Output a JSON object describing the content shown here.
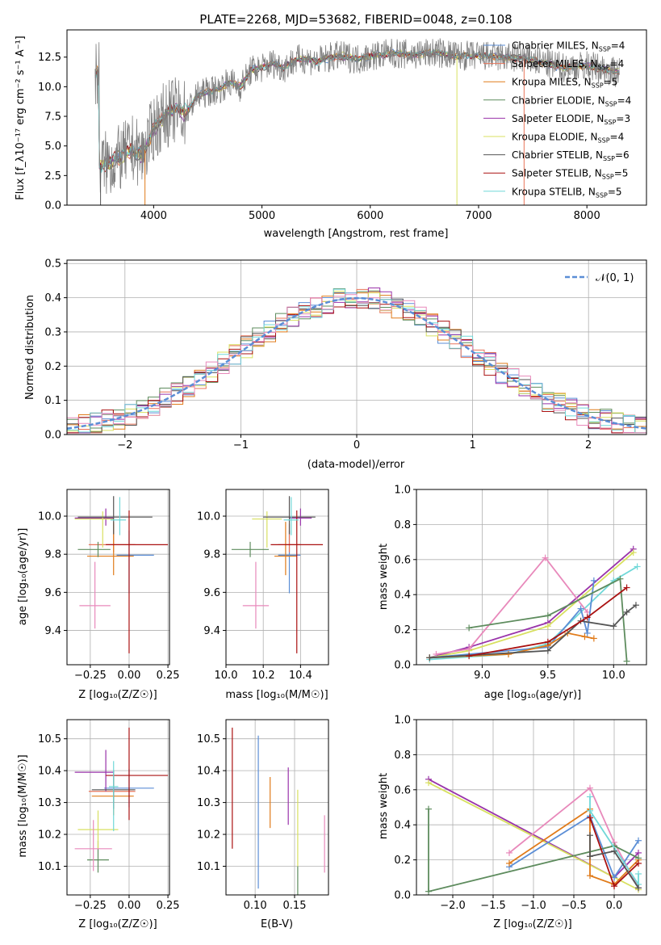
{
  "colors": {
    "chabrier_miles": "#5b8ed6",
    "salpeter_miles": "#e8745a",
    "kroupa_miles": "#e07b1a",
    "chabrier_elodie": "#5e8c5e",
    "salpeter_elodie": "#9933aa",
    "kroupa_elodie": "#d8e060",
    "chabrier_stelib": "#555555",
    "salpeter_stelib": "#aa1111",
    "kroupa_stelib": "#70d8d8",
    "pink": "#e889bb",
    "grey_data": "#808080",
    "normal_dash": "#5b8ed6"
  },
  "chart_data": [
    {
      "type": "line",
      "id": "spectrum",
      "title": "PLATE=2268, MJD=53682, FIBERID=0048, z=0.108",
      "xlabel": "wavelength [Angstrom, rest frame]",
      "ylabel": "Flux [f_λ10⁻¹⁷ erg cm⁻² s⁻¹ A⁻¹]",
      "xlim": [
        3200,
        8550
      ],
      "ylim": [
        0,
        14.8
      ],
      "xticks": [
        "4000",
        "5000",
        "6000",
        "7000",
        "8000"
      ],
      "yticks": [
        "0.0",
        "2.5",
        "5.0",
        "7.5",
        "10.0",
        "12.5"
      ],
      "legend_position": "right",
      "legend": [
        "Chabrier MILES, NSSP=4",
        "Salpeter MILES, NSSP=4",
        "Kroupa MILES, NSSP=5",
        "Chabrier ELODIE, NSSP=4",
        "Salpeter ELODIE, NSSP=3",
        "Kroupa ELODIE, NSSP=4",
        "Chabrier STELIB, NSSP=6",
        "Salpeter STELIB, NSSP=5",
        "Kroupa STELIB, NSSP=5"
      ],
      "data_envelope": {
        "x": [
          3500,
          3600,
          3700,
          3800,
          3900,
          4000,
          4100,
          4200,
          4300,
          4400,
          4500,
          4600,
          4700,
          4800,
          4900,
          5000,
          5100,
          5200,
          5300,
          5400,
          5500,
          5600,
          5700,
          5800,
          5900,
          6000,
          6200,
          6400,
          6600,
          6800,
          7000,
          7200,
          7400,
          7600,
          7800,
          8000,
          8200,
          8300
        ],
        "y": [
          3.4,
          3.6,
          4.0,
          4.8,
          4.2,
          6.5,
          7.6,
          8.0,
          7.8,
          9.2,
          9.6,
          9.8,
          10.4,
          10.0,
          11.4,
          11.6,
          12.0,
          11.6,
          12.2,
          12.4,
          12.1,
          12.4,
          12.6,
          12.5,
          12.3,
          12.6,
          12.8,
          12.7,
          12.9,
          12.6,
          12.6,
          12.5,
          12.4,
          12.0,
          11.6,
          11.8,
          11.4,
          11.2
        ]
      },
      "drops_to_zero": [
        3510,
        3920,
        6800,
        7420
      ]
    },
    {
      "type": "histogram",
      "id": "residuals",
      "xlabel": "(data-model)/error",
      "ylabel": "Normed distribution",
      "xlim": [
        -2.5,
        2.5
      ],
      "ylim": [
        0,
        0.51
      ],
      "xticks": [
        "−2",
        "−1",
        "0",
        "1",
        "2"
      ],
      "yticks": [
        "0.0",
        "0.1",
        "0.2",
        "0.3",
        "0.4",
        "0.5"
      ],
      "legend": [
        "𝒩(0, 1)"
      ],
      "legend_position": "upper right",
      "bin_width": 0.1
    },
    {
      "type": "errorbar",
      "id": "age_vs_Z",
      "xlabel": "Z [log₁₀(Z/Z☉)]",
      "ylabel": "age  [log₁₀(age/yr)]",
      "xlim": [
        -0.4,
        0.26
      ],
      "ylim": [
        9.22,
        10.14
      ],
      "xticks": [
        "−0.25",
        "0.00",
        "0.25"
      ],
      "yticks": [
        "9.4",
        "9.6",
        "9.8",
        "10.0"
      ],
      "points": [
        {
          "color": "chabrier_miles",
          "x": 0.0,
          "xerr": [
            0.08,
            0.16
          ],
          "y": 9.795,
          "yerr": [
            0.2,
            0.13
          ]
        },
        {
          "color": "salpeter_miles",
          "x": -0.1,
          "xerr": [
            0.16,
            0.14
          ],
          "y": 9.85,
          "yerr": [
            0.04,
            0.11
          ]
        },
        {
          "color": "kroupa_miles",
          "x": -0.1,
          "xerr": [
            0.17,
            0.13
          ],
          "y": 9.79,
          "yerr": [
            0.1,
            0.18
          ]
        },
        {
          "color": "chabrier_elodie",
          "x": -0.2,
          "xerr": [
            0.13,
            0.08
          ],
          "y": 9.825,
          "yerr": [
            0.04,
            0.04
          ]
        },
        {
          "color": "salpeter_elodie",
          "x": -0.15,
          "xerr": [
            0.2,
            0.05
          ],
          "y": 9.99,
          "yerr": [
            0.04,
            0.05
          ]
        },
        {
          "color": "kroupa_elodie",
          "x": -0.17,
          "xerr": [
            0.18,
            0.07
          ],
          "y": 9.985,
          "yerr": [
            0.15,
            0.04
          ]
        },
        {
          "color": "chabrier_stelib",
          "x": -0.1,
          "xerr": [
            0.23,
            0.25
          ],
          "y": 9.995,
          "yerr": [
            0.09,
            0.11
          ]
        },
        {
          "color": "salpeter_stelib",
          "x": 0.0,
          "xerr": [
            0.15,
            0.25
          ],
          "y": 9.85,
          "yerr": [
            0.57,
            0.18
          ]
        },
        {
          "color": "kroupa_stelib",
          "x": -0.06,
          "xerr": [
            0.06,
            0.04
          ],
          "y": 9.98,
          "yerr": [
            0.08,
            0.12
          ]
        },
        {
          "color": "pink",
          "x": -0.22,
          "xerr": [
            0.1,
            0.1
          ],
          "y": 9.53,
          "yerr": [
            0.12,
            0.23
          ]
        }
      ]
    },
    {
      "type": "errorbar",
      "id": "age_vs_mass",
      "xlabel": "mass [log₁₀(M/M☉)]",
      "ylabel": "",
      "xlim": [
        10.0,
        10.55
      ],
      "ylim": [
        9.22,
        10.14
      ],
      "xticks": [
        "10.0",
        "10.2",
        "10.4"
      ],
      "yticks": [
        "9.4",
        "9.6",
        "9.8",
        "10.0"
      ],
      "points": [
        {
          "color": "chabrier_miles",
          "x": 10.34,
          "xerr": [
            0.06,
            0.06
          ],
          "y": 9.795,
          "yerr": [
            0.2,
            0.13
          ]
        },
        {
          "color": "salpeter_miles",
          "x": 10.34,
          "xerr": [
            0.06,
            0.06
          ],
          "y": 9.85,
          "yerr": [
            0.04,
            0.11
          ]
        },
        {
          "color": "kroupa_miles",
          "x": 10.32,
          "xerr": [
            0.06,
            0.06
          ],
          "y": 9.79,
          "yerr": [
            0.1,
            0.18
          ]
        },
        {
          "color": "chabrier_elodie",
          "x": 10.13,
          "xerr": [
            0.1,
            0.1
          ],
          "y": 9.825,
          "yerr": [
            0.04,
            0.04
          ]
        },
        {
          "color": "salpeter_elodie",
          "x": 10.4,
          "xerr": [
            0.06,
            0.06
          ],
          "y": 9.99,
          "yerr": [
            0.04,
            0.05
          ]
        },
        {
          "color": "kroupa_elodie",
          "x": 10.22,
          "xerr": [
            0.08,
            0.08
          ],
          "y": 9.985,
          "yerr": [
            0.15,
            0.04
          ]
        },
        {
          "color": "chabrier_stelib",
          "x": 10.34,
          "xerr": [
            0.14,
            0.14
          ],
          "y": 9.995,
          "yerr": [
            0.09,
            0.11
          ]
        },
        {
          "color": "salpeter_stelib",
          "x": 10.38,
          "xerr": [
            0.14,
            0.14
          ],
          "y": 9.85,
          "yerr": [
            0.57,
            0.18
          ]
        },
        {
          "color": "kroupa_stelib",
          "x": 10.35,
          "xerr": [
            0.04,
            0.04
          ],
          "y": 9.98,
          "yerr": [
            0.08,
            0.12
          ]
        },
        {
          "color": "pink",
          "x": 10.16,
          "xerr": [
            0.07,
            0.07
          ],
          "y": 9.53,
          "yerr": [
            0.12,
            0.23
          ]
        }
      ]
    },
    {
      "type": "line",
      "id": "weight_vs_age",
      "xlabel": "age  [log₁₀(age/yr)]",
      "ylabel": "mass weight",
      "xlim": [
        8.5,
        10.25
      ],
      "ylim": [
        0.0,
        1.0
      ],
      "xticks": [
        "9.0",
        "9.5",
        "10.0"
      ],
      "yticks": [
        "0.0",
        "0.2",
        "0.4",
        "0.6",
        "0.8",
        "1.0"
      ],
      "series": [
        {
          "color": "salpeter_elodie",
          "x": [
            8.6,
            8.9,
            9.5,
            10.15
          ],
          "y": [
            0.04,
            0.1,
            0.24,
            0.66
          ]
        },
        {
          "color": "kroupa_elodie",
          "x": [
            8.6,
            8.9,
            9.5,
            10.15
          ],
          "y": [
            0.04,
            0.08,
            0.22,
            0.64
          ]
        },
        {
          "color": "kroupa_stelib",
          "x": [
            8.6,
            9.2,
            9.5,
            10.0,
            10.18
          ],
          "y": [
            0.03,
            0.06,
            0.12,
            0.48,
            0.56
          ]
        },
        {
          "color": "pink",
          "x": [
            8.65,
            8.9,
            9.48,
            9.8
          ],
          "y": [
            0.06,
            0.09,
            0.61,
            0.3
          ]
        },
        {
          "color": "chabrier_miles",
          "x": [
            8.6,
            9.5,
            9.75,
            9.8,
            9.85
          ],
          "y": [
            0.04,
            0.1,
            0.32,
            0.18,
            0.48
          ]
        },
        {
          "color": "kroupa_miles",
          "x": [
            8.6,
            9.2,
            9.5,
            9.65,
            9.85,
            9.78
          ],
          "y": [
            0.04,
            0.06,
            0.11,
            0.18,
            0.15,
            0.16
          ]
        },
        {
          "color": "chabrier_elodie",
          "x": [
            8.9,
            9.5,
            10.05,
            10.1
          ],
          "y": [
            0.21,
            0.28,
            0.49,
            0.02
          ]
        },
        {
          "color": "chabrier_stelib",
          "x": [
            8.6,
            9.5,
            9.75,
            10.0,
            10.1,
            10.17
          ],
          "y": [
            0.04,
            0.08,
            0.25,
            0.22,
            0.3,
            0.34
          ]
        },
        {
          "color": "salpeter_stelib",
          "x": [
            8.9,
            9.5,
            9.8,
            10.1
          ],
          "y": [
            0.05,
            0.13,
            0.27,
            0.44
          ]
        }
      ]
    },
    {
      "type": "errorbar",
      "id": "mass_vs_Z",
      "xlabel": "Z [log₁₀(Z/Z☉)]",
      "ylabel": "mass [log₁₀(M/M☉)]",
      "xlim": [
        -0.4,
        0.26
      ],
      "ylim": [
        10.01,
        10.56
      ],
      "xticks": [
        "−0.25",
        "0.00",
        "0.25"
      ],
      "yticks": [
        "10.1",
        "10.2",
        "10.3",
        "10.4",
        "10.5"
      ],
      "points": [
        {
          "color": "chabrier_miles",
          "x": 0.0,
          "xerr": [
            0.16,
            0.16
          ],
          "y": 10.345,
          "yerr": [
            0.06,
            0.06
          ]
        },
        {
          "color": "salpeter_miles",
          "x": -0.1,
          "xerr": [
            0.16,
            0.14
          ],
          "y": 10.335,
          "yerr": [
            0.05,
            0.05
          ]
        },
        {
          "color": "kroupa_miles",
          "x": -0.1,
          "xerr": [
            0.14,
            0.13
          ],
          "y": 10.32,
          "yerr": [
            0.06,
            0.06
          ]
        },
        {
          "color": "chabrier_elodie",
          "x": -0.2,
          "xerr": [
            0.07,
            0.07
          ],
          "y": 10.12,
          "yerr": [
            0.04,
            0.06
          ]
        },
        {
          "color": "salpeter_elodie",
          "x": -0.15,
          "xerr": [
            0.2,
            0.05
          ],
          "y": 10.395,
          "yerr": [
            0.06,
            0.07
          ]
        },
        {
          "color": "kroupa_elodie",
          "x": -0.2,
          "xerr": [
            0.13,
            0.13
          ],
          "y": 10.215,
          "yerr": [
            0.06,
            0.06
          ]
        },
        {
          "color": "chabrier_stelib",
          "x": -0.1,
          "xerr": [
            0.14,
            0.14
          ],
          "y": 10.34,
          "yerr": [
            0.06,
            0.06
          ]
        },
        {
          "color": "salpeter_stelib",
          "x": 0.0,
          "xerr": [
            0.15,
            0.25
          ],
          "y": 10.385,
          "yerr": [
            0.14,
            0.15
          ]
        },
        {
          "color": "kroupa_stelib",
          "x": -0.1,
          "xerr": [
            0.03,
            0.03
          ],
          "y": 10.35,
          "yerr": [
            0.14,
            0.08
          ]
        },
        {
          "color": "pink",
          "x": -0.23,
          "xerr": [
            0.12,
            0.12
          ],
          "y": 10.155,
          "yerr": [
            0.07,
            0.09
          ]
        }
      ]
    },
    {
      "type": "errorbar",
      "id": "mass_vs_ebv",
      "xlabel": "E(B-V)",
      "ylabel": "",
      "xlim": [
        0.063,
        0.193
      ],
      "ylim": [
        10.01,
        10.56
      ],
      "xticks": [
        "0.10",
        "0.15"
      ],
      "yticks": [
        "10.1",
        "10.2",
        "10.3",
        "10.4",
        "10.5"
      ],
      "points": [
        {
          "color": "salpeter_stelib",
          "x": 0.071,
          "y": 10.345,
          "yerr": [
            0.19,
            0.19
          ]
        },
        {
          "color": "chabrier_miles",
          "x": 0.104,
          "y": 10.27,
          "yerr": [
            0.24,
            0.24
          ]
        },
        {
          "color": "kroupa_miles",
          "x": 0.119,
          "y": 10.3,
          "yerr": [
            0.08,
            0.08
          ]
        },
        {
          "color": "salpeter_elodie",
          "x": 0.142,
          "y": 10.32,
          "yerr": [
            0.09,
            0.09
          ]
        },
        {
          "color": "kroupa_elodie",
          "x": 0.154,
          "y": 10.22,
          "yerr": [
            0.12,
            0.12
          ]
        },
        {
          "color": "chabrier_elodie",
          "x": 0.154,
          "y": 10.055,
          "yerr": [
            0.045,
            0.045
          ]
        },
        {
          "color": "pink",
          "x": 0.188,
          "y": 10.17,
          "yerr": [
            0.09,
            0.09
          ]
        }
      ]
    },
    {
      "type": "line",
      "id": "weight_vs_Z",
      "xlabel": "Z [log₁₀(Z/Z☉)]",
      "ylabel": "mass weight",
      "xlim": [
        -2.45,
        0.4
      ],
      "ylim": [
        0.0,
        1.0
      ],
      "xticks": [
        "−2.0",
        "−1.5",
        "−1.0",
        "−0.5",
        "0.0"
      ],
      "yticks": [
        "0.0",
        "0.2",
        "0.4",
        "0.6",
        "0.8",
        "1.0"
      ],
      "series": [
        {
          "color": "salpeter_elodie",
          "x": [
            -2.3,
            0.0,
            0.3
          ],
          "y": [
            0.66,
            0.1,
            0.24
          ]
        },
        {
          "color": "kroupa_elodie",
          "x": [
            -2.3,
            0.3
          ],
          "y": [
            0.64,
            0.03
          ]
        },
        {
          "color": "pink",
          "x": [
            -1.3,
            -0.3,
            0.0,
            0.3
          ],
          "y": [
            0.24,
            0.61,
            0.3,
            0.04
          ]
        },
        {
          "color": "chabrier_miles",
          "x": [
            -1.3,
            -0.3,
            0.0,
            0.3
          ],
          "y": [
            0.16,
            0.45,
            0.1,
            0.31
          ]
        },
        {
          "color": "kroupa_miles",
          "x": [
            -1.3,
            -0.3,
            -0.3,
            0.0,
            0.3
          ],
          "y": [
            0.18,
            0.49,
            0.11,
            0.06,
            0.2
          ]
        },
        {
          "color": "chabrier_elodie",
          "x": [
            -2.3,
            -2.3,
            0.0,
            0.3
          ],
          "y": [
            0.49,
            0.02,
            0.28,
            0.21
          ]
        },
        {
          "color": "kroupa_stelib",
          "x": [
            -0.3,
            -0.3,
            0.3,
            0.3
          ],
          "y": [
            0.56,
            0.48,
            0.06,
            0.12
          ]
        },
        {
          "color": "salpeter_stelib",
          "x": [
            -0.3,
            0.0,
            0.3
          ],
          "y": [
            0.44,
            0.05,
            0.18
          ]
        },
        {
          "color": "chabrier_stelib",
          "x": [
            -0.3,
            -0.3,
            0.0,
            0.3
          ],
          "y": [
            0.34,
            0.22,
            0.25,
            0.04
          ]
        }
      ]
    }
  ]
}
